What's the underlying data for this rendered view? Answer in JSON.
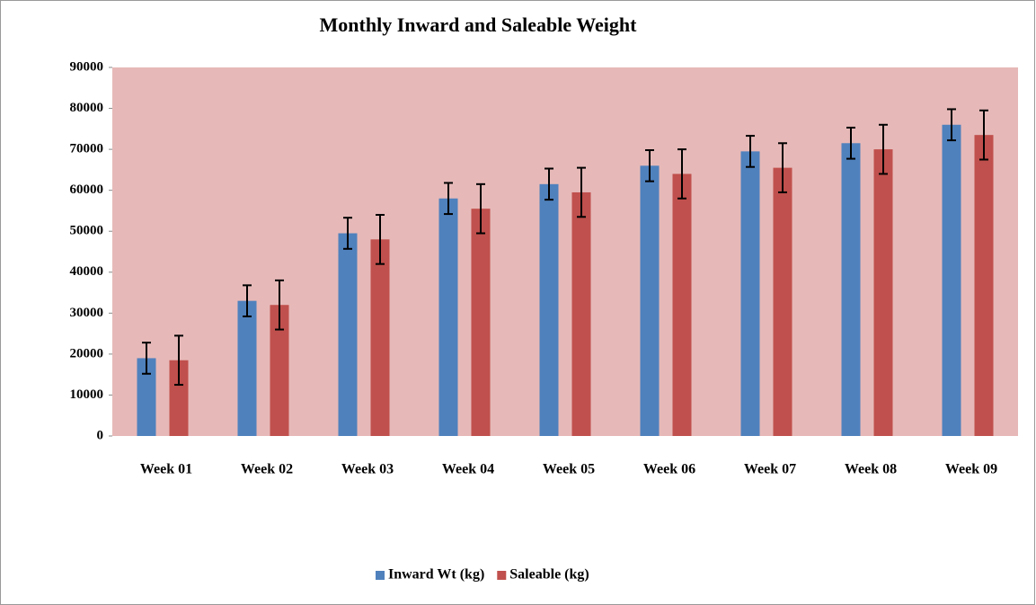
{
  "chart_data": {
    "type": "bar",
    "title": "Monthly Inward and Saleable Weight",
    "categories": [
      "Week 01",
      "Week 02",
      "Week 03",
      "Week 04",
      "Week 05",
      "Week 06",
      "Week 07",
      "Week 08",
      "Week 09"
    ],
    "series": [
      {
        "name": "Inward Wt (kg)",
        "color": "#4f81bd",
        "values": [
          19000,
          33000,
          49500,
          58000,
          61500,
          66000,
          69500,
          71500,
          76000
        ],
        "errors": [
          3800,
          3800,
          3800,
          3800,
          3800,
          3800,
          3800,
          3800,
          3800
        ]
      },
      {
        "name": "Saleable (kg)",
        "color": "#c0504d",
        "values": [
          18500,
          32000,
          48000,
          55500,
          59500,
          64000,
          65500,
          70000,
          73500
        ],
        "errors": [
          6000,
          6000,
          6000,
          6000,
          6000,
          6000,
          6000,
          6000,
          6000
        ]
      }
    ],
    "ylim": [
      0,
      90000
    ],
    "yticks": [
      0,
      10000,
      20000,
      30000,
      40000,
      50000,
      60000,
      70000,
      80000,
      90000
    ],
    "plot_background": "#e6b9b8",
    "legend": "bottom"
  }
}
